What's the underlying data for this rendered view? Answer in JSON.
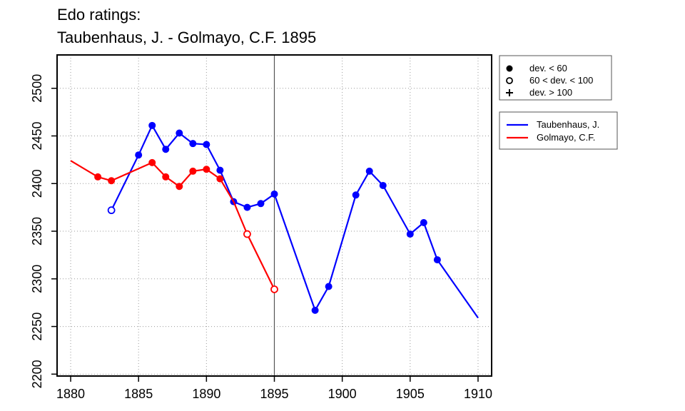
{
  "chart_data": {
    "type": "line",
    "title_lines": [
      "Edo ratings:",
      "Taubenhaus, J. - Golmayo, C.F. 1895"
    ],
    "xlabel": "",
    "ylabel": "",
    "xlim": [
      1879,
      1911
    ],
    "ylim": [
      2198,
      2535
    ],
    "x_ticks": [
      1880,
      1885,
      1890,
      1895,
      1900,
      1905,
      1910
    ],
    "y_ticks": [
      2200,
      2250,
      2300,
      2350,
      2400,
      2450,
      2500
    ],
    "grid": "dotted",
    "vline_x": 1895,
    "marker_legend": {
      "placement": "top-right",
      "items": [
        {
          "marker": "filled-circle",
          "label": "dev. < 60"
        },
        {
          "marker": "open-circle",
          "label": "60 < dev. < 100"
        },
        {
          "marker": "plus",
          "label": "dev. > 100"
        }
      ]
    },
    "series_legend": {
      "placement": "right"
    },
    "series": [
      {
        "name": "Taubenhaus, J.",
        "color": "#0000ff",
        "points": [
          {
            "x": 1883,
            "y": 2372,
            "marker": "open-circle"
          },
          {
            "x": 1885,
            "y": 2430,
            "marker": "filled-circle"
          },
          {
            "x": 1886,
            "y": 2461,
            "marker": "filled-circle"
          },
          {
            "x": 1887,
            "y": 2436,
            "marker": "filled-circle"
          },
          {
            "x": 1888,
            "y": 2453,
            "marker": "filled-circle"
          },
          {
            "x": 1889,
            "y": 2442,
            "marker": "filled-circle"
          },
          {
            "x": 1890,
            "y": 2441,
            "marker": "filled-circle"
          },
          {
            "x": 1891,
            "y": 2414,
            "marker": "filled-circle"
          },
          {
            "x": 1892,
            "y": 2381,
            "marker": "filled-circle"
          },
          {
            "x": 1893,
            "y": 2375,
            "marker": "filled-circle"
          },
          {
            "x": 1894,
            "y": 2379,
            "marker": "filled-circle"
          },
          {
            "x": 1895,
            "y": 2389,
            "marker": "filled-circle"
          },
          {
            "x": 1898,
            "y": 2267,
            "marker": "filled-circle"
          },
          {
            "x": 1899,
            "y": 2292,
            "marker": "filled-circle"
          },
          {
            "x": 1901,
            "y": 2388,
            "marker": "filled-circle"
          },
          {
            "x": 1902,
            "y": 2413,
            "marker": "filled-circle"
          },
          {
            "x": 1903,
            "y": 2398,
            "marker": "filled-circle"
          },
          {
            "x": 1905,
            "y": 2347,
            "marker": "filled-circle"
          },
          {
            "x": 1906,
            "y": 2359,
            "marker": "filled-circle"
          },
          {
            "x": 1907,
            "y": 2320,
            "marker": "filled-circle"
          },
          {
            "x": 1910,
            "y": 2259,
            "marker": "none"
          }
        ]
      },
      {
        "name": "Golmayo, C.F.",
        "color": "#ff0000",
        "points": [
          {
            "x": 1880,
            "y": 2424,
            "marker": "none"
          },
          {
            "x": 1882,
            "y": 2407,
            "marker": "filled-circle"
          },
          {
            "x": 1883,
            "y": 2403,
            "marker": "filled-circle"
          },
          {
            "x": 1886,
            "y": 2422,
            "marker": "filled-circle"
          },
          {
            "x": 1887,
            "y": 2407,
            "marker": "filled-circle"
          },
          {
            "x": 1888,
            "y": 2397,
            "marker": "filled-circle"
          },
          {
            "x": 1889,
            "y": 2413,
            "marker": "filled-circle"
          },
          {
            "x": 1890,
            "y": 2415,
            "marker": "filled-circle"
          },
          {
            "x": 1891,
            "y": 2405,
            "marker": "filled-circle"
          },
          {
            "x": 1892,
            "y": 2381,
            "marker": "none"
          },
          {
            "x": 1893,
            "y": 2347,
            "marker": "open-circle"
          },
          {
            "x": 1895,
            "y": 2289,
            "marker": "open-circle"
          }
        ]
      }
    ]
  }
}
